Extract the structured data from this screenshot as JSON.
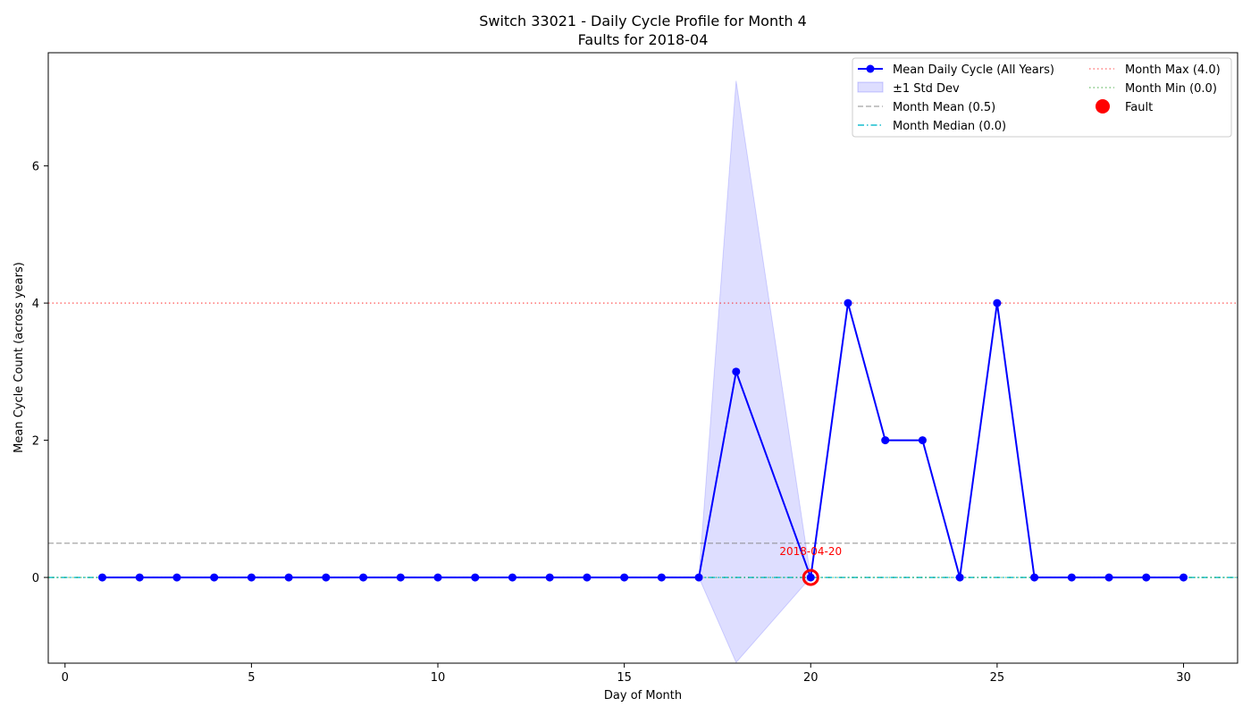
{
  "chart_data": {
    "type": "line",
    "title": "Switch 33021 - Daily Cycle Profile for Month 4",
    "subtitle": "Faults for 2018-04",
    "xlabel": "Day of Month",
    "ylabel": "Mean Cycle Count (across years)",
    "xlim": [
      -0.45,
      31.45
    ],
    "ylim": [
      -1.25,
      7.65
    ],
    "xticks": [
      0,
      5,
      10,
      15,
      20,
      25,
      30
    ],
    "yticks": [
      0,
      2,
      4,
      6
    ],
    "grid": false,
    "legend_position": "top-right",
    "series": [
      {
        "name": "Mean Daily Cycle (All Years)",
        "color": "#0000ff",
        "marker": "circle",
        "x": [
          1,
          2,
          3,
          4,
          5,
          6,
          7,
          8,
          9,
          10,
          11,
          12,
          13,
          14,
          15,
          16,
          17,
          18,
          20,
          21,
          22,
          23,
          24,
          25,
          26,
          27,
          28,
          29,
          30
        ],
        "y": [
          0,
          0,
          0,
          0,
          0,
          0,
          0,
          0,
          0,
          0,
          0,
          0,
          0,
          0,
          0,
          0,
          0,
          3,
          0,
          4,
          2,
          2,
          0,
          4,
          0,
          0,
          0,
          0,
          0
        ]
      }
    ],
    "band": {
      "name": "±1 Std Dev",
      "color": "#0000ff",
      "x": [
        17,
        18,
        20
      ],
      "upper": [
        0,
        7.24,
        0
      ],
      "lower": [
        0,
        -1.24,
        0
      ]
    },
    "reference_lines": [
      {
        "name": "Month Mean (0.5)",
        "value": 0.5,
        "color": "#808080",
        "style": "dashed"
      },
      {
        "name": "Month Median (0.0)",
        "value": 0.0,
        "color": "#17becf",
        "style": "dashdot"
      },
      {
        "name": "Month Max (4.0)",
        "value": 4.0,
        "color": "#ff0000",
        "style": "dotted"
      },
      {
        "name": "Month Min (0.0)",
        "value": 0.0,
        "color": "#2ca02c",
        "style": "dotted"
      }
    ],
    "faults": [
      {
        "name": "Fault",
        "x": 20,
        "y": 0,
        "label": "2018-04-20",
        "color": "#ff0000"
      }
    ]
  }
}
